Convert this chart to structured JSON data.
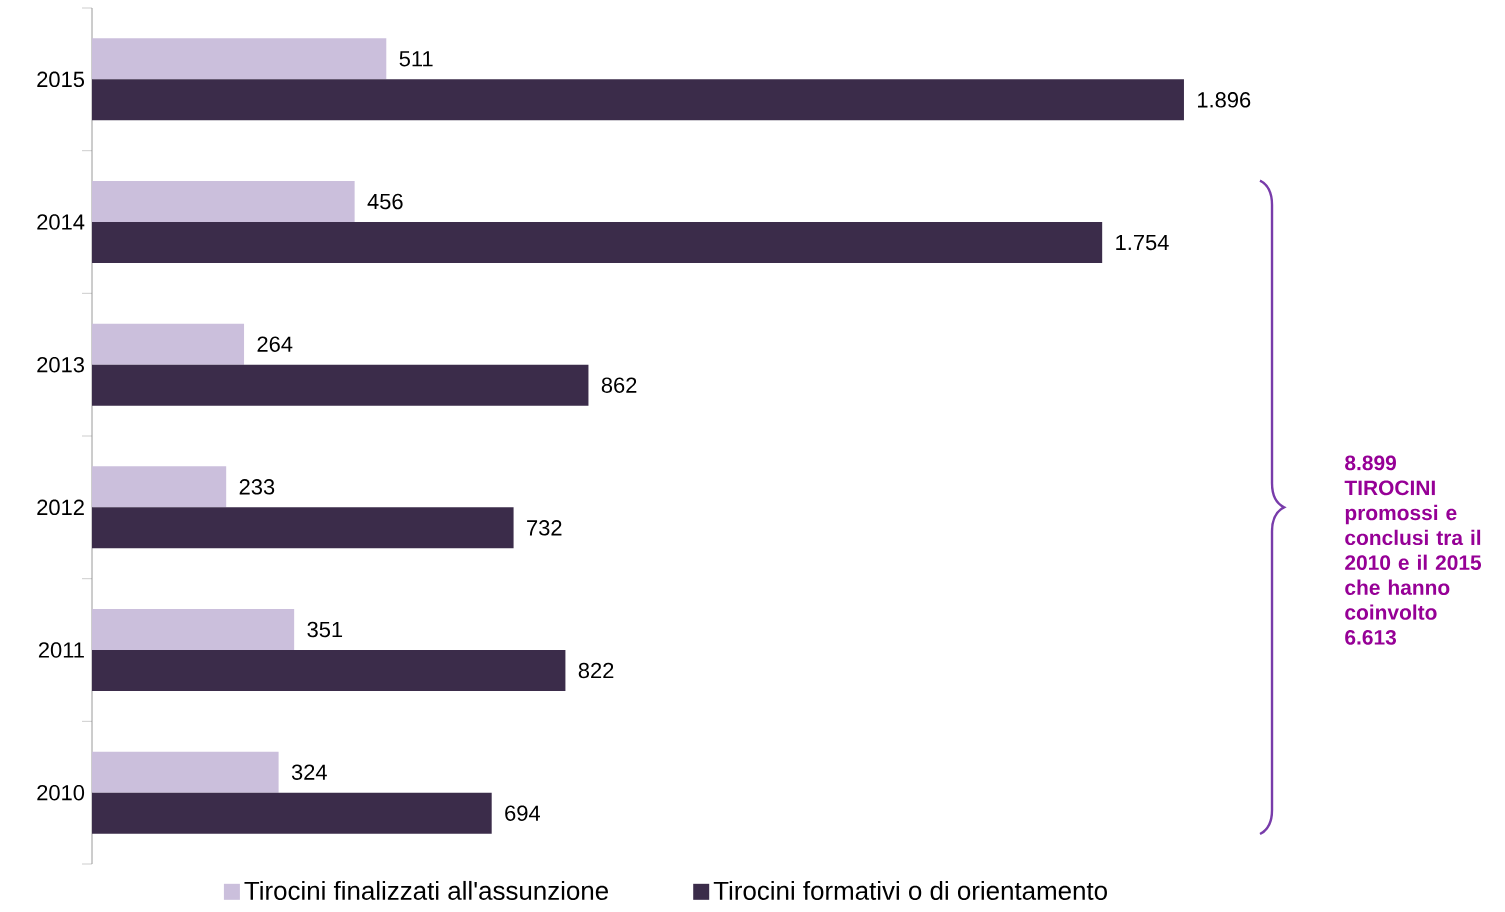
{
  "chart_data": {
    "type": "bar",
    "orientation": "horizontal",
    "categories": [
      "2015",
      "2014",
      "2013",
      "2012",
      "2011",
      "2010"
    ],
    "series": [
      {
        "name": "Tirocini finalizzati all'assunzione",
        "color": "#cbbfdc",
        "values": [
          511,
          456,
          264,
          233,
          351,
          324
        ],
        "value_labels": [
          "511",
          "456",
          "264",
          "233",
          "351",
          "324"
        ]
      },
      {
        "name": "Tirocini formativi o di orientamento",
        "color": "#3b2c4a",
        "values": [
          1896,
          1754,
          862,
          732,
          822,
          694
        ],
        "value_labels": [
          "1.896",
          "1.754",
          "862",
          "732",
          "822",
          "694"
        ]
      }
    ],
    "legend": "bottom",
    "tick_labels": "y",
    "annotations": [
      "8.899 TIROCINI promossi e conclusi tra il 2010 e il 2015 che hanno coinvolto 6.613"
    ]
  }
}
